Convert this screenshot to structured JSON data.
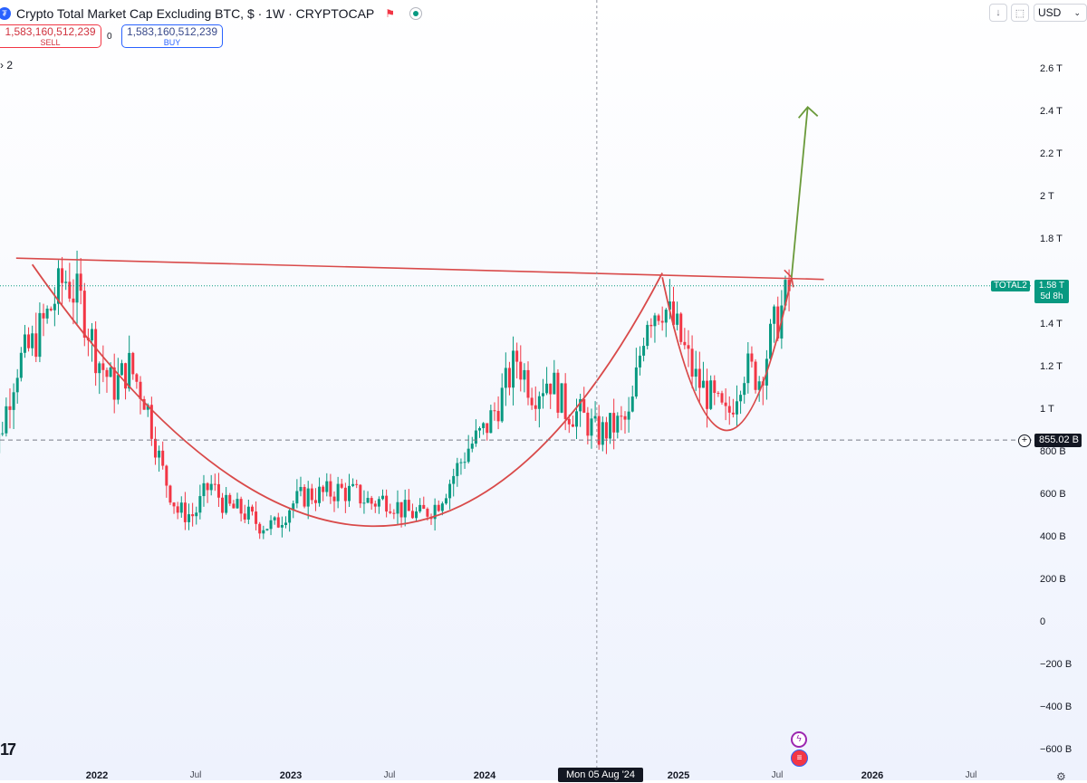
{
  "header": {
    "title": "Crypto Total Market Cap Excluding BTC, $ · 1W · CRYPTOCAP",
    "symbol_icon": "coin-icon",
    "flag_icon": "flag-icon"
  },
  "trade": {
    "sell_price": "1,583,160,512,239",
    "sell_label": "SELL",
    "spread": "0",
    "buy_price": "1,583,160,512,239",
    "buy_label": "BUY"
  },
  "indicator_count": "2",
  "toolbar": {
    "currency": "USD",
    "download_icon": "download-icon",
    "snapshot_icon": "camera-icon"
  },
  "price_axis": [
    "2.6 T",
    "2.4 T",
    "2.2 T",
    "2 T",
    "1.8 T",
    "1.4 T",
    "1.2 T",
    "1 T",
    "800 B",
    "600 B",
    "400 B",
    "200 B",
    "0",
    "−200 B",
    "−400 B",
    "−600 B"
  ],
  "time_axis": {
    "major": [
      "2022",
      "2023",
      "2024",
      "2025",
      "2026"
    ],
    "minor": [
      "Jul",
      "Jul",
      "Jul",
      "Jul",
      "Jul"
    ]
  },
  "last_price": {
    "symbol": "TOTAL2",
    "value": "1.58 T",
    "countdown": "5d 8h"
  },
  "crosshair": {
    "price": "855.02 B",
    "date": "Mon 05 Aug '24"
  },
  "chart_data": {
    "type": "candlestick",
    "title": "Crypto Total Market Cap Excluding BTC",
    "interval": "1W",
    "source": "CRYPTOCAP",
    "y_unit": "USD",
    "ylim": [
      -600000000000,
      2800000000000
    ],
    "xlim": [
      "2021-06",
      "2026-07"
    ],
    "grid": false,
    "colors": {
      "up": "#089981",
      "down": "#f23645",
      "drawing_red": "#d94a4a",
      "drawing_green": "#6a9a3a"
    },
    "close_series": {
      "dates": [
        "2021-06",
        "2021-07",
        "2021-08",
        "2021-09",
        "2021-10",
        "2021-11",
        "2021-12",
        "2022-01",
        "2022-02",
        "2022-03",
        "2022-04",
        "2022-05",
        "2022-06",
        "2022-07",
        "2022-08",
        "2022-09",
        "2022-10",
        "2022-11",
        "2022-12",
        "2023-01",
        "2023-02",
        "2023-03",
        "2023-04",
        "2023-05",
        "2023-06",
        "2023-07",
        "2023-08",
        "2023-09",
        "2023-10",
        "2023-11",
        "2023-12",
        "2024-01",
        "2024-02",
        "2024-03",
        "2024-04",
        "2024-05",
        "2024-06",
        "2024-07",
        "2024-08",
        "2024-09",
        "2024-10",
        "2024-11",
        "2024-12",
        "2025-01",
        "2025-02",
        "2025-03",
        "2025-04",
        "2025-05",
        "2025-06",
        "2025-07",
        "2025-08"
      ],
      "values_T": [
        0.64,
        0.88,
        1.2,
        1.3,
        1.45,
        1.62,
        1.5,
        1.25,
        1.1,
        1.2,
        1.05,
        0.72,
        0.52,
        0.5,
        0.65,
        0.54,
        0.52,
        0.46,
        0.45,
        0.55,
        0.6,
        0.6,
        0.62,
        0.6,
        0.56,
        0.58,
        0.52,
        0.5,
        0.55,
        0.68,
        0.82,
        0.9,
        1.05,
        1.24,
        1.08,
        1.15,
        1.0,
        0.97,
        0.88,
        0.92,
        0.95,
        1.45,
        1.5,
        1.35,
        1.15,
        1.05,
        0.95,
        1.2,
        1.15,
        1.4,
        1.58
      ]
    },
    "drawings": {
      "resistance_line": {
        "from": [
          "2021-08",
          1.71
        ],
        "to": [
          "2025-10",
          1.61
        ]
      },
      "cup_curve": {
        "from": [
          "2021-09",
          1.68
        ],
        "low": [
          "2023-06",
          0.45
        ],
        "to": [
          "2024-12",
          1.64
        ]
      },
      "handle_curve": {
        "from": [
          "2024-12",
          1.62
        ],
        "low": [
          "2025-04",
          0.9
        ],
        "to": [
          "2025-08",
          1.62
        ]
      },
      "target_arrow": {
        "from": [
          "2025-08",
          1.62
        ],
        "to": [
          "2025-09",
          2.42
        ]
      }
    },
    "last_value_T": 1.58,
    "crosshair_value_B": 855.02
  }
}
